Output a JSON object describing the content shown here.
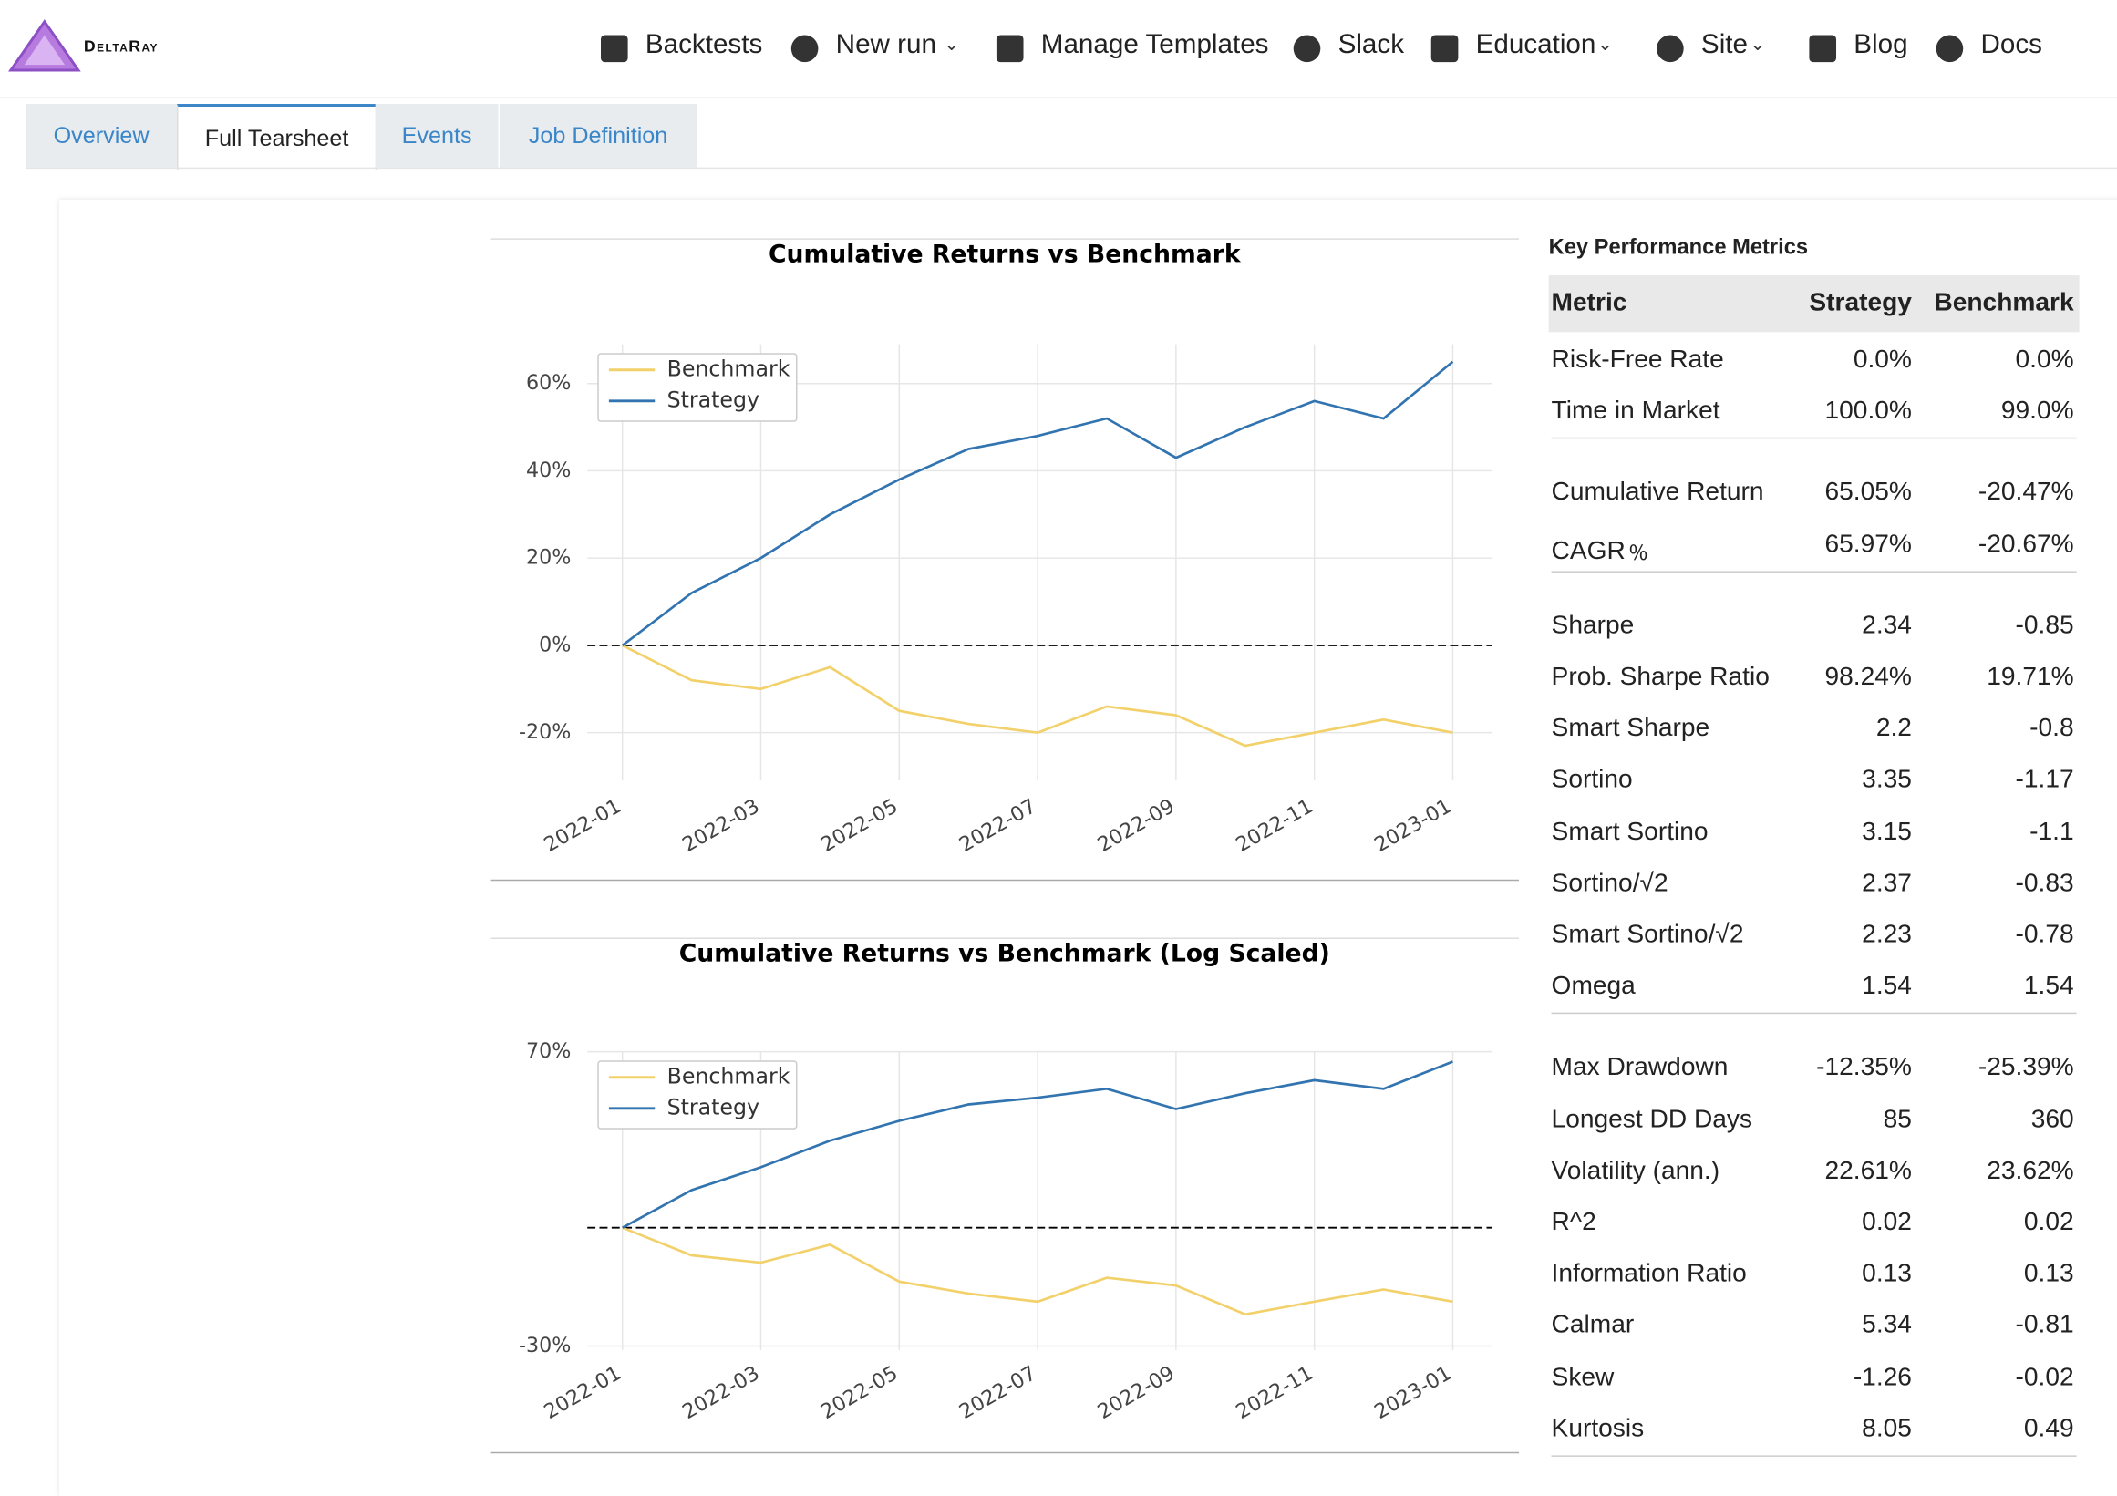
{
  "nav": {
    "brand": "DeltaRay",
    "items": [
      "Backtests",
      "New run",
      "Manage Templates",
      "Slack",
      "Education",
      "Site",
      "Blog",
      "Docs"
    ]
  },
  "tabs": [
    "Overview",
    "Full Tearsheet",
    "Events",
    "Job Definition"
  ],
  "chart_data": [
    {
      "type": "line",
      "title": "Cumulative Returns vs Benchmark",
      "log_scale": false,
      "x": [
        "2022-01",
        null,
        "2022-03",
        null,
        "2022-05",
        null,
        "2022-07",
        null,
        "2022-09",
        null,
        "2022-11",
        null,
        "2023-01"
      ],
      "series": [
        {
          "name": "Benchmark",
          "color": "#f2d16b",
          "values": [
            0,
            -8,
            -10,
            -5,
            -15,
            -18,
            -20,
            -14,
            -16,
            -23,
            -20,
            -17,
            -20
          ]
        },
        {
          "name": "Strategy",
          "color": "#3274b0",
          "values": [
            0,
            12,
            20,
            30,
            38,
            45,
            48,
            52,
            43,
            50,
            56,
            52,
            65
          ]
        }
      ],
      "ylim": [
        -30,
        69
      ],
      "yticks": [
        {
          "value": -20,
          "label": "-20%"
        },
        {
          "value": 0,
          "label": "0%"
        },
        {
          "value": 20,
          "label": "20%"
        },
        {
          "value": 40,
          "label": "40%"
        },
        {
          "value": 60,
          "label": "60%"
        }
      ],
      "hline": 0,
      "grid": true,
      "legend": "upper left"
    },
    {
      "type": "line",
      "title": "Cumulative Returns vs Benchmark (Log Scaled)",
      "log_scale": true,
      "x": [
        "2022-01",
        null,
        "2022-03",
        null,
        "2022-05",
        null,
        "2022-07",
        null,
        "2022-09",
        null,
        "2022-11",
        null,
        "2023-01"
      ],
      "series": [
        {
          "name": "Benchmark",
          "color": "#f2d16b",
          "values": [
            0,
            -8,
            -10,
            -5,
            -15,
            -18,
            -20,
            -14,
            -16,
            -23,
            -20,
            -17,
            -20
          ]
        },
        {
          "name": "Strategy",
          "color": "#3274b0",
          "values": [
            0,
            12,
            20,
            30,
            38,
            45,
            48,
            52,
            43,
            50,
            56,
            52,
            65
          ]
        }
      ],
      "ylim": [
        -30,
        70
      ],
      "yticks": [
        {
          "value": -30,
          "label": "-30%"
        },
        {
          "value": 70,
          "label": "70%"
        }
      ],
      "hline": 0,
      "grid": true,
      "legend": "upper left"
    }
  ],
  "metrics": {
    "title": "Key Performance Metrics",
    "header": [
      "Metric",
      "Strategy",
      "Benchmark"
    ],
    "groups": [
      [
        [
          "Risk-Free Rate",
          "0.0%",
          "0.0%"
        ],
        [
          "Time in Market",
          "100.0%",
          "99.0%"
        ]
      ],
      [
        [
          "Cumulative Return",
          "65.05%",
          "-20.47%"
        ],
        [
          "CAGR﹪",
          "65.97%",
          "-20.67%"
        ]
      ],
      [
        [
          "Sharpe",
          "2.34",
          "-0.85"
        ],
        [
          "Prob. Sharpe Ratio",
          "98.24%",
          "19.71%"
        ],
        [
          "Smart Sharpe",
          "2.2",
          "-0.8"
        ],
        [
          "Sortino",
          "3.35",
          "-1.17"
        ],
        [
          "Smart Sortino",
          "3.15",
          "-1.1"
        ],
        [
          "Sortino/√2",
          "2.37",
          "-0.83"
        ],
        [
          "Smart Sortino/√2",
          "2.23",
          "-0.78"
        ],
        [
          "Omega",
          "1.54",
          "1.54"
        ]
      ],
      [
        [
          "Max Drawdown",
          "-12.35%",
          "-25.39%"
        ],
        [
          "Longest DD Days",
          "85",
          "360"
        ],
        [
          "Volatility (ann.)",
          "22.61%",
          "23.62%"
        ],
        [
          "R^2",
          "0.02",
          "0.02"
        ],
        [
          "Information Ratio",
          "0.13",
          "0.13"
        ],
        [
          "Calmar",
          "5.34",
          "-0.81"
        ],
        [
          "Skew",
          "-1.26",
          "-0.02"
        ],
        [
          "Kurtosis",
          "8.05",
          "0.49"
        ]
      ]
    ]
  }
}
